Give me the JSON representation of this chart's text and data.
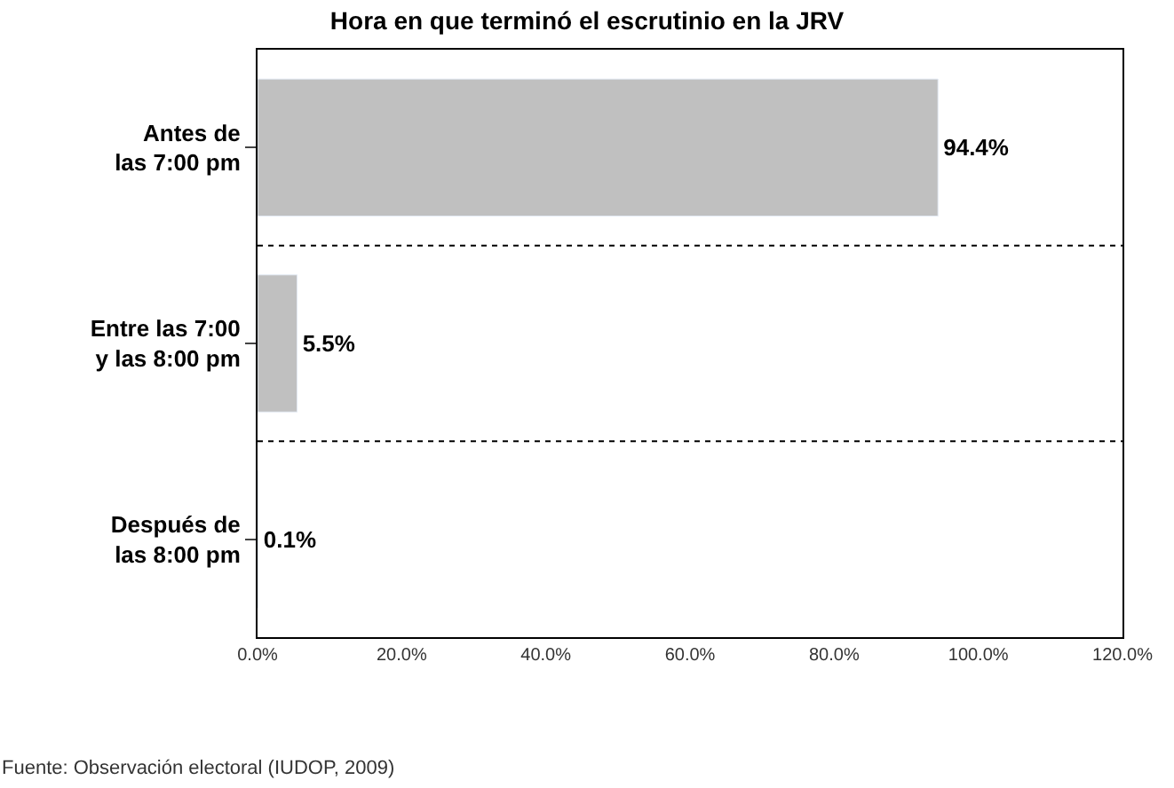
{
  "chart_data": {
    "type": "bar",
    "orientation": "horizontal",
    "title": "Hora en que terminó el escrutinio en la JRV",
    "categories": [
      "Antes de\nlas 7:00 pm",
      "Entre las 7:00\ny las 8:00 pm",
      "Después de\nlas 8:00 pm"
    ],
    "values": [
      94.4,
      5.5,
      0.1
    ],
    "color": "#c0c0c0",
    "value_labels": [
      "94.4%",
      "5.5%",
      "0.1%"
    ],
    "xlim": [
      0,
      120
    ],
    "xticks": [
      {
        "value": 0,
        "label": "0.0%"
      },
      {
        "value": 20,
        "label": "20.0%"
      },
      {
        "value": 40,
        "label": "40.0%"
      },
      {
        "value": 60,
        "label": "60.0%"
      },
      {
        "value": 80,
        "label": "80.0%"
      },
      {
        "value": 100,
        "label": "100.0%"
      },
      {
        "value": 120,
        "label": "120.0%"
      }
    ],
    "annotations": [
      "Fuente: Observación electoral (IUDOP, 2009)"
    ]
  }
}
